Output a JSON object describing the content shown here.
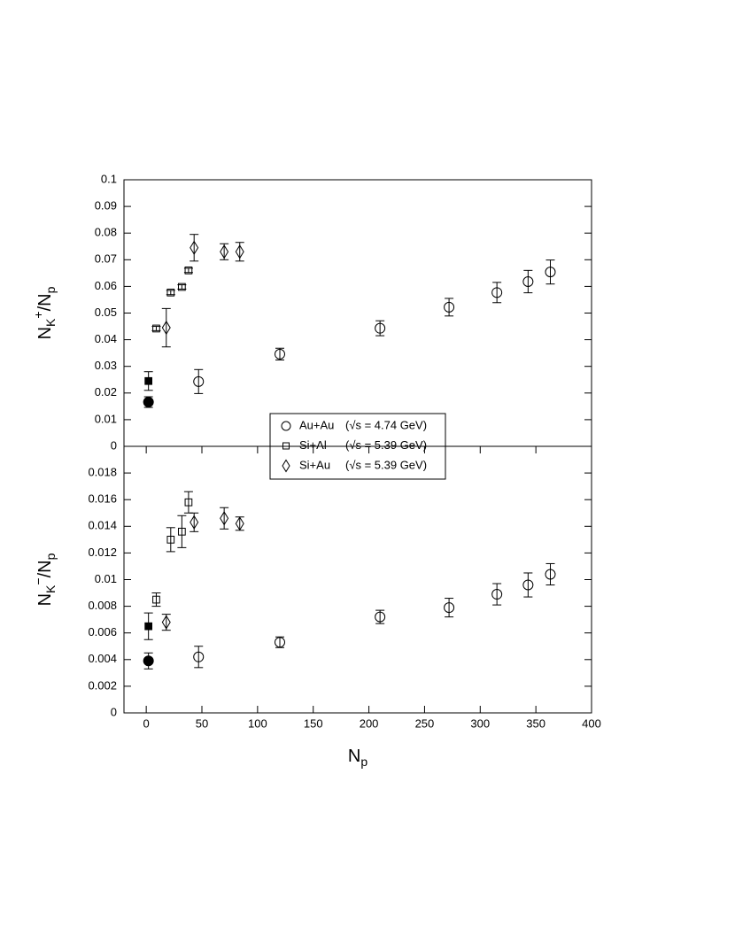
{
  "chart_data": [
    {
      "type": "scatter",
      "ylabel": [
        "N",
        "K",
        "+",
        "/N",
        "p"
      ],
      "xlim": [
        -20,
        400
      ],
      "ylim": [
        0,
        0.1
      ],
      "yticks": [
        0,
        0.01,
        0.02,
        0.03,
        0.04,
        0.05,
        0.06,
        0.07,
        0.08,
        0.09,
        0.1
      ],
      "series": [
        {
          "name": "Au+Au",
          "energy": "(√s = 4.74 GeV)",
          "marker": "circle",
          "filled": false,
          "color": "#000000",
          "x": [
            47,
            120,
            210,
            272,
            315,
            343,
            363
          ],
          "values": [
            0.0243,
            0.0346,
            0.0443,
            0.0522,
            0.0577,
            0.0618,
            0.0654
          ],
          "errors": [
            0.0045,
            0.0022,
            0.0028,
            0.0033,
            0.0038,
            0.0042,
            0.0045
          ]
        },
        {
          "name": "Si+Al",
          "energy": "(√s = 5.39 GeV)",
          "marker": "square",
          "filled": false,
          "color": "#000000",
          "x": [
            9,
            22,
            32,
            38
          ],
          "values": [
            0.0442,
            0.0577,
            0.0598,
            0.066
          ],
          "errors": [
            0.0008,
            0.0008,
            0.0008,
            0.0008
          ]
        },
        {
          "name": "Si+Au",
          "energy": "(√s = 5.39 GeV)",
          "marker": "diamond",
          "filled": false,
          "color": "#000000",
          "x": [
            18,
            43,
            70,
            84
          ],
          "values": [
            0.0445,
            0.0745,
            0.073,
            0.073
          ],
          "errors": [
            0.0072,
            0.005,
            0.003,
            0.0035
          ]
        },
        {
          "marker": "square",
          "filled": true,
          "color": "#000000",
          "x": [
            2
          ],
          "values": [
            0.0245
          ],
          "errors": [
            0.0035
          ]
        },
        {
          "marker": "circle",
          "filled": true,
          "color": "#000000",
          "x": [
            2
          ],
          "values": [
            0.0166
          ],
          "errors": [
            0.002
          ]
        }
      ]
    },
    {
      "type": "scatter",
      "ylabel": [
        "N",
        "K",
        "−",
        "/N",
        "p"
      ],
      "xlabel": [
        "N",
        "p"
      ],
      "xlim": [
        -20,
        400
      ],
      "ylim": [
        0,
        0.02
      ],
      "xticks": [
        0,
        50,
        100,
        150,
        200,
        250,
        300,
        350,
        400
      ],
      "yticks": [
        0,
        0.002,
        0.004,
        0.006,
        0.008,
        0.01,
        0.012,
        0.014,
        0.016,
        0.018
      ],
      "series": [
        {
          "marker": "circle",
          "filled": false,
          "color": "#000000",
          "x": [
            47,
            120,
            210,
            272,
            315,
            343,
            363
          ],
          "values": [
            0.0042,
            0.0053,
            0.0072,
            0.0079,
            0.0089,
            0.0096,
            0.0104
          ],
          "errors": [
            0.0008,
            0.0004,
            0.0005,
            0.0007,
            0.0008,
            0.0009,
            0.0008
          ]
        },
        {
          "marker": "square",
          "filled": false,
          "color": "#000000",
          "x": [
            9,
            22,
            32,
            38
          ],
          "values": [
            0.0085,
            0.013,
            0.0136,
            0.0158
          ],
          "errors": [
            0.0005,
            0.0009,
            0.0012,
            0.0008
          ]
        },
        {
          "marker": "diamond",
          "filled": false,
          "color": "#000000",
          "x": [
            18,
            43,
            70,
            84
          ],
          "values": [
            0.0068,
            0.0143,
            0.0146,
            0.0142
          ],
          "errors": [
            0.0006,
            0.0007,
            0.0008,
            0.0005
          ]
        },
        {
          "marker": "square",
          "filled": true,
          "color": "#000000",
          "x": [
            2
          ],
          "values": [
            0.0065
          ],
          "errors": [
            0.001
          ]
        },
        {
          "marker": "circle",
          "filled": true,
          "color": "#000000",
          "x": [
            2
          ],
          "values": [
            0.0039
          ],
          "errors": [
            0.0006
          ]
        }
      ]
    }
  ]
}
